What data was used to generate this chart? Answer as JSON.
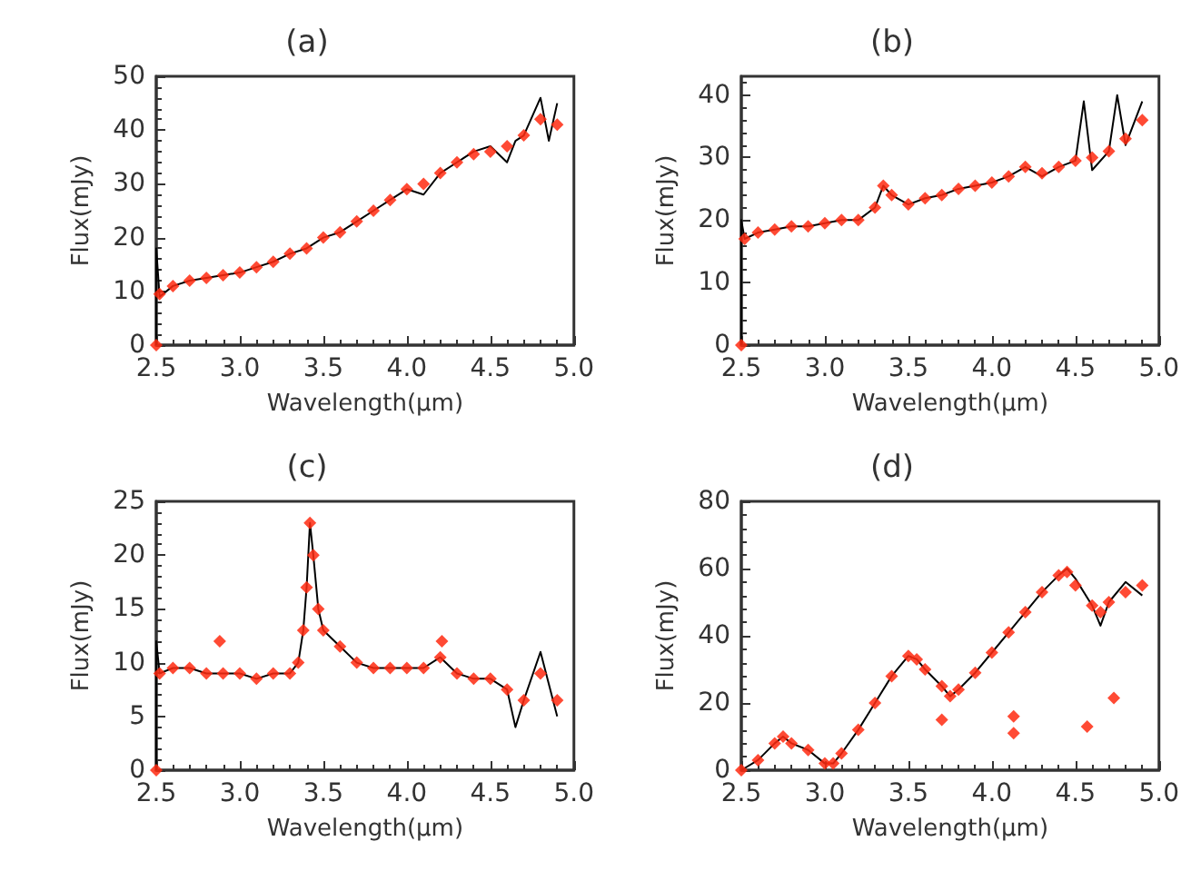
{
  "chart_data": [
    {
      "type": "line",
      "title": "(a)",
      "xlabel": "Wavelength(μm)",
      "ylabel": "Flux(mJy)",
      "xlim": [
        2.5,
        5.0
      ],
      "xticks": [
        {
          "value": 2.5,
          "label": "2.5"
        },
        {
          "value": 3,
          "label": "3.0"
        },
        {
          "value": 3.5,
          "label": "3.5"
        },
        {
          "value": 4,
          "label": "4.0"
        },
        {
          "value": 4.5,
          "label": "4.5"
        },
        {
          "value": 5,
          "label": "5.0"
        }
      ],
      "ylim": [
        0,
        50
      ],
      "yticks": [
        0,
        10,
        20,
        30,
        40,
        50
      ],
      "grid": false,
      "series": [
        {
          "color": "#000000",
          "marker": "none",
          "x": [
            2.5,
            2.5,
            2.52,
            2.6,
            2.7,
            2.8,
            2.9,
            3.0,
            3.1,
            3.2,
            3.3,
            3.4,
            3.5,
            3.6,
            3.7,
            3.8,
            3.9,
            4.0,
            4.1,
            4.2,
            4.3,
            4.4,
            4.5,
            4.6,
            4.65,
            4.7,
            4.8,
            4.85,
            4.9
          ],
          "values": [
            0,
            18,
            9,
            11,
            12,
            12.5,
            13,
            13.5,
            14.5,
            15.5,
            17,
            18,
            20,
            21,
            23,
            25,
            27,
            29,
            28,
            32,
            34,
            36,
            37,
            34,
            38,
            39,
            46,
            38,
            45
          ]
        },
        {
          "type": "scatter",
          "color": "#ff2a10",
          "marker": "diamond",
          "x": [
            2.5,
            2.52,
            2.6,
            2.7,
            2.8,
            2.9,
            3.0,
            3.1,
            3.2,
            3.3,
            3.4,
            3.5,
            3.6,
            3.7,
            3.8,
            3.9,
            4.0,
            4.1,
            4.2,
            4.3,
            4.4,
            4.5,
            4.6,
            4.7,
            4.8,
            4.9
          ],
          "values": [
            0,
            9.5,
            11,
            12,
            12.5,
            13,
            13.5,
            14.5,
            15.5,
            17,
            18,
            20,
            21,
            23,
            25,
            27,
            29,
            30,
            32,
            34,
            35.5,
            36,
            37,
            39,
            42,
            41
          ]
        }
      ]
    },
    {
      "type": "line",
      "title": "(b)",
      "xlabel": "Wavelength(μm)",
      "ylabel": "Flux(mJy)",
      "xlim": [
        2.5,
        5.0
      ],
      "xticks": [
        {
          "value": 2.5,
          "label": "2.5"
        },
        {
          "value": 3,
          "label": "3.0"
        },
        {
          "value": 3.5,
          "label": "3.5"
        },
        {
          "value": 4,
          "label": "4.0"
        },
        {
          "value": 4.5,
          "label": "4.5"
        },
        {
          "value": 5,
          "label": "5.0"
        }
      ],
      "ylim": [
        0,
        43
      ],
      "yticks": [
        0,
        10,
        20,
        30,
        40
      ],
      "grid": false,
      "series": [
        {
          "color": "#000000",
          "marker": "none",
          "x": [
            2.5,
            2.5,
            2.52,
            2.6,
            2.7,
            2.8,
            2.9,
            3.0,
            3.1,
            3.2,
            3.3,
            3.35,
            3.4,
            3.5,
            3.6,
            3.7,
            3.8,
            3.9,
            4.0,
            4.1,
            4.2,
            4.3,
            4.4,
            4.5,
            4.55,
            4.6,
            4.7,
            4.75,
            4.8,
            4.9
          ],
          "values": [
            0,
            20,
            17,
            18,
            18.5,
            19,
            19,
            19.5,
            20,
            20,
            22,
            25.5,
            24,
            22.5,
            23.5,
            24,
            25,
            25.5,
            26,
            27,
            28.5,
            27,
            28.5,
            29.5,
            39,
            28,
            31,
            40,
            32,
            39
          ]
        },
        {
          "type": "scatter",
          "color": "#ff2a10",
          "marker": "diamond",
          "x": [
            2.5,
            2.52,
            2.6,
            2.7,
            2.8,
            2.9,
            3.0,
            3.1,
            3.2,
            3.3,
            3.35,
            3.4,
            3.5,
            3.6,
            3.7,
            3.8,
            3.9,
            4.0,
            4.1,
            4.2,
            4.3,
            4.4,
            4.5,
            4.6,
            4.7,
            4.8,
            4.9
          ],
          "values": [
            0,
            17,
            18,
            18.5,
            19,
            19,
            19.5,
            20,
            20,
            22,
            25.5,
            24,
            22.5,
            23.5,
            24,
            25,
            25.5,
            26,
            27,
            28.5,
            27.5,
            28.5,
            29.5,
            30,
            31,
            33,
            36
          ]
        }
      ]
    },
    {
      "type": "line",
      "title": "(c)",
      "xlabel": "Wavelength(μm)",
      "ylabel": "Flux(mJy)",
      "xlim": [
        2.5,
        5.0
      ],
      "xticks": [
        {
          "value": 2.5,
          "label": "2.5"
        },
        {
          "value": 3,
          "label": "3.0"
        },
        {
          "value": 3.5,
          "label": "3.5"
        },
        {
          "value": 4,
          "label": "4.0"
        },
        {
          "value": 4.5,
          "label": "4.5"
        },
        {
          "value": 5,
          "label": "5.0"
        }
      ],
      "ylim": [
        0,
        25
      ],
      "yticks": [
        0,
        5,
        10,
        15,
        20,
        25
      ],
      "grid": false,
      "series": [
        {
          "color": "#000000",
          "marker": "none",
          "x": [
            2.5,
            2.5,
            2.52,
            2.6,
            2.7,
            2.8,
            2.9,
            3.0,
            3.1,
            3.2,
            3.3,
            3.35,
            3.38,
            3.4,
            3.42,
            3.44,
            3.47,
            3.5,
            3.6,
            3.7,
            3.8,
            3.9,
            4.0,
            4.1,
            4.2,
            4.3,
            4.4,
            4.5,
            4.6,
            4.65,
            4.7,
            4.8,
            4.9
          ],
          "values": [
            0,
            12,
            9,
            9.5,
            9.5,
            9,
            9,
            9,
            8.5,
            9,
            9,
            10,
            13,
            17,
            23,
            20,
            15,
            13,
            11.5,
            10,
            9.5,
            9.5,
            9.5,
            9.5,
            10.5,
            9,
            8.5,
            8.5,
            7.5,
            4,
            6.5,
            11,
            5
          ]
        },
        {
          "type": "scatter",
          "color": "#ff2a10",
          "marker": "diamond",
          "x": [
            2.5,
            2.52,
            2.6,
            2.7,
            2.8,
            2.88,
            2.9,
            3.0,
            3.1,
            3.2,
            3.3,
            3.35,
            3.38,
            3.4,
            3.42,
            3.44,
            3.47,
            3.5,
            3.6,
            3.7,
            3.8,
            3.9,
            4.0,
            4.1,
            4.2,
            4.21,
            4.3,
            4.4,
            4.5,
            4.6,
            4.7,
            4.8,
            4.9
          ],
          "values": [
            0,
            9,
            9.5,
            9.5,
            9,
            12,
            9,
            9,
            8.5,
            9,
            9,
            10,
            13,
            17,
            23,
            20,
            15,
            13,
            11.5,
            10,
            9.5,
            9.5,
            9.5,
            9.5,
            10.5,
            12,
            9,
            8.5,
            8.5,
            7.5,
            6.5,
            9,
            6.5
          ]
        }
      ]
    },
    {
      "type": "line",
      "title": "(d)",
      "xlabel": "Wavelength(μm)",
      "ylabel": "Flux(mJy)",
      "xlim": [
        2.5,
        5.0
      ],
      "xticks": [
        {
          "value": 2.5,
          "label": "2.5"
        },
        {
          "value": 3,
          "label": "3.0"
        },
        {
          "value": 3.5,
          "label": "3.5"
        },
        {
          "value": 4,
          "label": "4.0"
        },
        {
          "value": 4.5,
          "label": "4.5"
        },
        {
          "value": 5,
          "label": "5.0"
        }
      ],
      "ylim": [
        0,
        80
      ],
      "yticks": [
        0,
        20,
        40,
        60,
        80
      ],
      "grid": false,
      "series": [
        {
          "color": "#000000",
          "marker": "none",
          "x": [
            2.5,
            2.6,
            2.7,
            2.75,
            2.8,
            2.9,
            3.0,
            3.05,
            3.1,
            3.2,
            3.3,
            3.4,
            3.5,
            3.55,
            3.6,
            3.7,
            3.75,
            3.8,
            3.9,
            4.0,
            4.1,
            4.2,
            4.3,
            4.4,
            4.45,
            4.5,
            4.6,
            4.65,
            4.7,
            4.8,
            4.9
          ],
          "values": [
            0,
            3,
            8,
            10,
            8,
            6,
            2,
            2,
            5,
            12,
            20,
            28,
            34,
            33,
            30,
            25,
            22,
            24,
            29,
            35,
            41,
            47,
            53,
            58,
            60,
            57,
            49,
            43,
            50,
            56,
            52
          ]
        },
        {
          "type": "scatter",
          "color": "#ff2a10",
          "marker": "diamond",
          "x": [
            2.5,
            2.6,
            2.7,
            2.75,
            2.8,
            2.9,
            3.0,
            3.05,
            3.1,
            3.2,
            3.3,
            3.4,
            3.5,
            3.55,
            3.6,
            3.7,
            3.7,
            3.75,
            3.8,
            3.9,
            4.0,
            4.1,
            4.13,
            4.13,
            4.2,
            4.3,
            4.4,
            4.45,
            4.5,
            4.57,
            4.6,
            4.65,
            4.7,
            4.73,
            4.8,
            4.9
          ],
          "values": [
            0,
            3,
            8,
            10,
            8,
            6,
            2,
            2,
            5,
            12,
            20,
            28,
            34,
            33,
            30,
            25,
            15,
            22,
            24,
            29,
            35,
            41,
            16,
            11,
            47,
            53,
            58,
            59,
            55,
            13,
            49,
            47,
            50,
            21.5,
            53,
            55
          ]
        }
      ]
    }
  ]
}
